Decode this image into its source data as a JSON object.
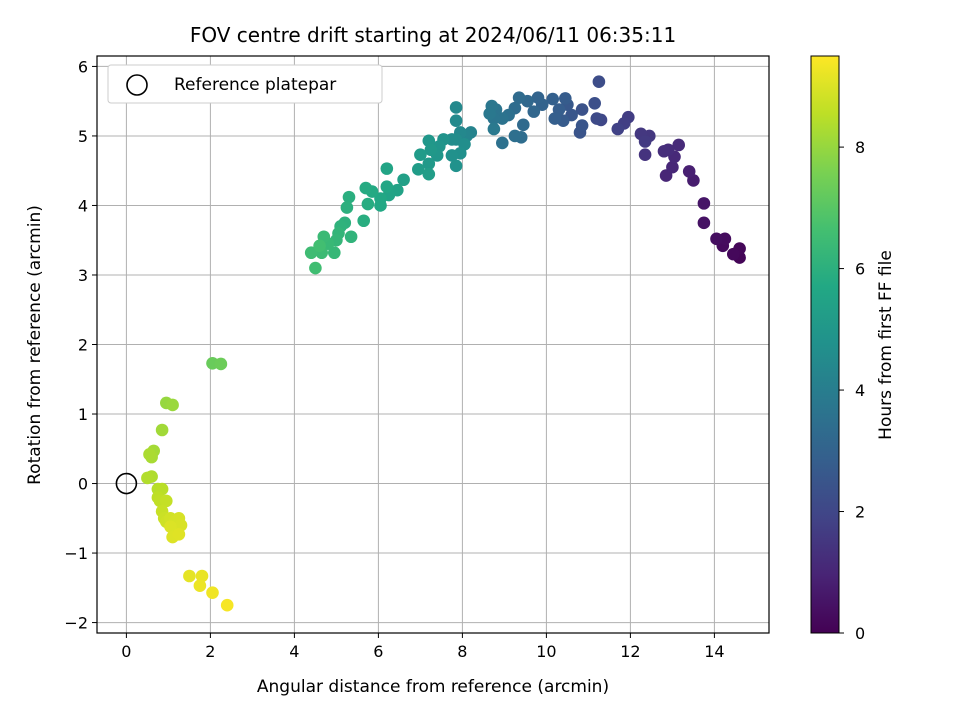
{
  "chart_data": {
    "type": "scatter",
    "title": "FOV centre drift starting at 2024/06/11 06:35:11",
    "xlabel": "Angular distance from reference (arcmin)",
    "ylabel": "Rotation from reference (arcmin)",
    "xlim": [
      -0.7,
      15.3
    ],
    "ylim": [
      -2.15,
      6.15
    ],
    "xticks": [
      0,
      2,
      4,
      6,
      8,
      10,
      12,
      14
    ],
    "yticks": [
      -2,
      -1,
      0,
      1,
      2,
      3,
      4,
      5,
      6
    ],
    "grid": true,
    "legend": {
      "placement": "upper-left",
      "entries": [
        "Reference platepar"
      ]
    },
    "reference_point": {
      "x": 0,
      "y": 0
    },
    "colorbar": {
      "label": "Hours from first FF file",
      "range": [
        0,
        9.5
      ],
      "ticks": [
        0,
        2,
        4,
        6,
        8
      ],
      "colormap": "viridis"
    },
    "points": [
      {
        "x": 14.6,
        "y": 3.25,
        "t": 0.1
      },
      {
        "x": 14.6,
        "y": 3.38,
        "t": 0.15
      },
      {
        "x": 14.45,
        "y": 3.3,
        "t": 0.2
      },
      {
        "x": 14.2,
        "y": 3.42,
        "t": 0.25
      },
      {
        "x": 14.25,
        "y": 3.52,
        "t": 0.3
      },
      {
        "x": 14.05,
        "y": 3.52,
        "t": 0.35
      },
      {
        "x": 13.75,
        "y": 3.75,
        "t": 0.45
      },
      {
        "x": 13.75,
        "y": 4.03,
        "t": 0.55
      },
      {
        "x": 13.5,
        "y": 4.36,
        "t": 0.75
      },
      {
        "x": 13.4,
        "y": 4.49,
        "t": 0.85
      },
      {
        "x": 12.85,
        "y": 4.43,
        "t": 1.0
      },
      {
        "x": 13.0,
        "y": 4.55,
        "t": 1.05
      },
      {
        "x": 13.05,
        "y": 4.7,
        "t": 1.1
      },
      {
        "x": 13.15,
        "y": 4.87,
        "t": 1.15
      },
      {
        "x": 12.9,
        "y": 4.8,
        "t": 1.2
      },
      {
        "x": 12.8,
        "y": 4.78,
        "t": 1.25
      },
      {
        "x": 12.35,
        "y": 4.73,
        "t": 1.4
      },
      {
        "x": 12.45,
        "y": 5.0,
        "t": 1.5
      },
      {
        "x": 12.25,
        "y": 5.03,
        "t": 1.55
      },
      {
        "x": 12.35,
        "y": 4.92,
        "t": 1.6
      },
      {
        "x": 11.95,
        "y": 5.27,
        "t": 1.7
      },
      {
        "x": 11.85,
        "y": 5.18,
        "t": 1.75
      },
      {
        "x": 11.7,
        "y": 5.1,
        "t": 1.85
      },
      {
        "x": 11.3,
        "y": 5.23,
        "t": 2.0
      },
      {
        "x": 11.2,
        "y": 5.25,
        "t": 2.1
      },
      {
        "x": 11.25,
        "y": 5.78,
        "t": 2.2
      },
      {
        "x": 11.15,
        "y": 5.47,
        "t": 2.3
      },
      {
        "x": 10.85,
        "y": 5.38,
        "t": 2.4
      },
      {
        "x": 10.8,
        "y": 5.05,
        "t": 2.45
      },
      {
        "x": 10.85,
        "y": 5.15,
        "t": 2.5
      },
      {
        "x": 10.6,
        "y": 5.3,
        "t": 2.55
      },
      {
        "x": 10.5,
        "y": 5.45,
        "t": 2.6
      },
      {
        "x": 10.4,
        "y": 5.22,
        "t": 2.7
      },
      {
        "x": 10.45,
        "y": 5.54,
        "t": 2.75
      },
      {
        "x": 10.3,
        "y": 5.38,
        "t": 2.8
      },
      {
        "x": 10.2,
        "y": 5.25,
        "t": 2.85
      },
      {
        "x": 10.15,
        "y": 5.53,
        "t": 2.9
      },
      {
        "x": 9.9,
        "y": 5.45,
        "t": 3.0
      },
      {
        "x": 9.8,
        "y": 5.55,
        "t": 3.05
      },
      {
        "x": 9.7,
        "y": 5.35,
        "t": 3.15
      },
      {
        "x": 9.55,
        "y": 5.5,
        "t": 3.2
      },
      {
        "x": 9.45,
        "y": 5.16,
        "t": 3.25
      },
      {
        "x": 9.35,
        "y": 5.55,
        "t": 3.3
      },
      {
        "x": 9.25,
        "y": 5.4,
        "t": 3.35
      },
      {
        "x": 9.4,
        "y": 4.98,
        "t": 3.4
      },
      {
        "x": 9.25,
        "y": 5.0,
        "t": 3.45
      },
      {
        "x": 9.1,
        "y": 5.3,
        "t": 3.5
      },
      {
        "x": 8.95,
        "y": 4.9,
        "t": 3.55
      },
      {
        "x": 8.95,
        "y": 5.25,
        "t": 3.6
      },
      {
        "x": 8.8,
        "y": 5.38,
        "t": 3.65
      },
      {
        "x": 8.75,
        "y": 5.25,
        "t": 3.7
      },
      {
        "x": 8.7,
        "y": 5.43,
        "t": 3.75
      },
      {
        "x": 8.65,
        "y": 5.32,
        "t": 3.8
      },
      {
        "x": 8.75,
        "y": 5.1,
        "t": 3.85
      },
      {
        "x": 8.2,
        "y": 5.05,
        "t": 4.2
      },
      {
        "x": 8.1,
        "y": 5.0,
        "t": 4.3
      },
      {
        "x": 7.95,
        "y": 5.05,
        "t": 4.4
      },
      {
        "x": 7.85,
        "y": 5.41,
        "t": 4.45
      },
      {
        "x": 7.85,
        "y": 5.22,
        "t": 4.5
      },
      {
        "x": 7.85,
        "y": 4.95,
        "t": 4.55
      },
      {
        "x": 7.75,
        "y": 4.95,
        "t": 4.6
      },
      {
        "x": 8.05,
        "y": 4.88,
        "t": 4.65
      },
      {
        "x": 7.95,
        "y": 4.75,
        "t": 4.7
      },
      {
        "x": 7.75,
        "y": 4.72,
        "t": 4.75
      },
      {
        "x": 7.85,
        "y": 4.57,
        "t": 4.8
      },
      {
        "x": 7.55,
        "y": 4.95,
        "t": 4.85
      },
      {
        "x": 7.45,
        "y": 4.85,
        "t": 4.9
      },
      {
        "x": 7.4,
        "y": 4.72,
        "t": 4.95
      },
      {
        "x": 7.2,
        "y": 4.93,
        "t": 5.0
      },
      {
        "x": 7.25,
        "y": 4.8,
        "t": 5.05
      },
      {
        "x": 7.2,
        "y": 4.6,
        "t": 5.1
      },
      {
        "x": 7.0,
        "y": 4.73,
        "t": 5.15
      },
      {
        "x": 6.95,
        "y": 4.52,
        "t": 5.2
      },
      {
        "x": 7.2,
        "y": 4.45,
        "t": 5.25
      },
      {
        "x": 6.6,
        "y": 4.37,
        "t": 5.35
      },
      {
        "x": 6.45,
        "y": 4.22,
        "t": 5.45
      },
      {
        "x": 6.25,
        "y": 4.15,
        "t": 5.5
      },
      {
        "x": 6.2,
        "y": 4.53,
        "t": 5.55
      },
      {
        "x": 6.2,
        "y": 4.27,
        "t": 5.6
      },
      {
        "x": 6.05,
        "y": 4.1,
        "t": 5.65
      },
      {
        "x": 6.05,
        "y": 4.0,
        "t": 5.7
      },
      {
        "x": 5.85,
        "y": 4.2,
        "t": 5.75
      },
      {
        "x": 5.7,
        "y": 4.25,
        "t": 5.8
      },
      {
        "x": 5.75,
        "y": 4.02,
        "t": 5.85
      },
      {
        "x": 5.65,
        "y": 3.78,
        "t": 5.9
      },
      {
        "x": 5.3,
        "y": 4.12,
        "t": 5.95
      },
      {
        "x": 5.25,
        "y": 3.97,
        "t": 6.0
      },
      {
        "x": 5.2,
        "y": 3.75,
        "t": 6.05
      },
      {
        "x": 5.1,
        "y": 3.7,
        "t": 6.1
      },
      {
        "x": 5.35,
        "y": 3.55,
        "t": 6.15
      },
      {
        "x": 5.05,
        "y": 3.6,
        "t": 6.2
      },
      {
        "x": 5.0,
        "y": 3.5,
        "t": 6.25
      },
      {
        "x": 4.95,
        "y": 3.32,
        "t": 6.3
      },
      {
        "x": 4.8,
        "y": 3.45,
        "t": 6.35
      },
      {
        "x": 4.7,
        "y": 3.55,
        "t": 6.4
      },
      {
        "x": 4.65,
        "y": 3.32,
        "t": 6.45
      },
      {
        "x": 4.4,
        "y": 3.32,
        "t": 6.5
      },
      {
        "x": 4.5,
        "y": 3.1,
        "t": 6.55
      },
      {
        "x": 4.6,
        "y": 3.42,
        "t": 6.6
      },
      {
        "x": 2.05,
        "y": 1.73,
        "t": 7.3
      },
      {
        "x": 2.25,
        "y": 1.72,
        "t": 7.35
      },
      {
        "x": 0.95,
        "y": 1.16,
        "t": 8.0
      },
      {
        "x": 1.1,
        "y": 1.13,
        "t": 8.05
      },
      {
        "x": 0.85,
        "y": 0.77,
        "t": 8.15
      },
      {
        "x": 0.65,
        "y": 0.47,
        "t": 8.2
      },
      {
        "x": 0.6,
        "y": 0.38,
        "t": 8.25
      },
      {
        "x": 0.55,
        "y": 0.42,
        "t": 8.3
      },
      {
        "x": 0.6,
        "y": 0.1,
        "t": 8.35
      },
      {
        "x": 0.5,
        "y": 0.08,
        "t": 8.4
      },
      {
        "x": 0.75,
        "y": -0.08,
        "t": 8.45
      },
      {
        "x": 0.85,
        "y": -0.08,
        "t": 8.5
      },
      {
        "x": 0.75,
        "y": -0.2,
        "t": 8.55
      },
      {
        "x": 0.8,
        "y": -0.25,
        "t": 8.6
      },
      {
        "x": 0.95,
        "y": -0.25,
        "t": 8.65
      },
      {
        "x": 0.85,
        "y": -0.4,
        "t": 8.7
      },
      {
        "x": 0.9,
        "y": -0.5,
        "t": 8.75
      },
      {
        "x": 0.95,
        "y": -0.55,
        "t": 8.8
      },
      {
        "x": 1.05,
        "y": -0.5,
        "t": 8.85
      },
      {
        "x": 1.15,
        "y": -0.55,
        "t": 8.9
      },
      {
        "x": 1.25,
        "y": -0.5,
        "t": 8.92
      },
      {
        "x": 1.3,
        "y": -0.6,
        "t": 8.95
      },
      {
        "x": 1.05,
        "y": -0.62,
        "t": 9.0
      },
      {
        "x": 1.1,
        "y": -0.77,
        "t": 9.02
      },
      {
        "x": 1.25,
        "y": -0.73,
        "t": 9.05
      },
      {
        "x": 1.5,
        "y": -1.33,
        "t": 9.15
      },
      {
        "x": 1.8,
        "y": -1.33,
        "t": 9.2
      },
      {
        "x": 1.75,
        "y": -1.47,
        "t": 9.25
      },
      {
        "x": 2.05,
        "y": -1.57,
        "t": 9.3
      },
      {
        "x": 2.4,
        "y": -1.75,
        "t": 9.4
      }
    ]
  }
}
